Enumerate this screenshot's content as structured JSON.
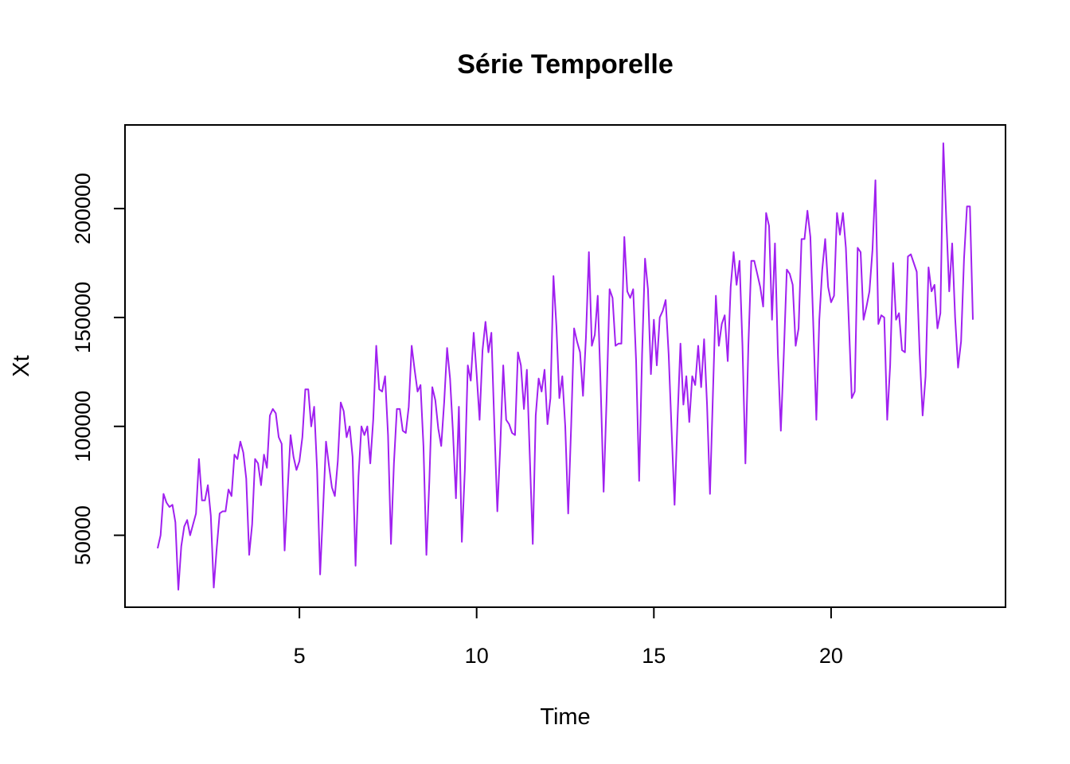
{
  "chart_data": {
    "type": "line",
    "title": "Série Temporelle",
    "xlabel": "Time",
    "ylabel": "Xt",
    "xlim": [
      1,
      24
    ],
    "ylim": [
      25000,
      230000
    ],
    "xticks": [
      5,
      10,
      15,
      20
    ],
    "yticks": [
      50000,
      100000,
      150000,
      200000
    ],
    "xtick_labels": [
      "5",
      "10",
      "15",
      "20"
    ],
    "ytick_labels": [
      "50000",
      "100000",
      "150000",
      "200000"
    ],
    "grid": false,
    "legend": false,
    "color": "#A020F0",
    "series": [
      {
        "values": [
          44000,
          50000,
          69000,
          65000,
          63000,
          64000,
          56000,
          25000,
          45000,
          54000,
          57000,
          50000,
          55000,
          60000,
          85000,
          66000,
          66000,
          73000,
          59000,
          26000,
          44000,
          60000,
          61000,
          61000,
          71000,
          68000,
          87000,
          85000,
          93000,
          88000,
          76000,
          41000,
          55000,
          85000,
          83000,
          73000,
          87000,
          81000,
          105000,
          108000,
          106000,
          95000,
          92000,
          43000,
          70000,
          96000,
          86000,
          80000,
          84000,
          95000,
          117000,
          117000,
          100000,
          109000,
          80000,
          32000,
          62000,
          93000,
          82000,
          72000,
          68000,
          84000,
          111000,
          107000,
          95000,
          100000,
          86000,
          36000,
          77000,
          100000,
          96000,
          100000,
          83000,
          103000,
          137000,
          117000,
          116000,
          123000,
          96000,
          46000,
          83000,
          108000,
          108000,
          98000,
          97000,
          109000,
          137000,
          126000,
          116000,
          119000,
          91000,
          41000,
          75000,
          118000,
          112000,
          99000,
          91000,
          111000,
          136000,
          122000,
          97000,
          67000,
          109000,
          47000,
          80000,
          128000,
          121000,
          143000,
          124000,
          103000,
          135000,
          148000,
          134000,
          143000,
          100000,
          61000,
          91000,
          128000,
          103000,
          101000,
          97000,
          96000,
          134000,
          128000,
          108000,
          126000,
          86000,
          46000,
          105000,
          122000,
          116000,
          126000,
          101000,
          113000,
          169000,
          146000,
          113000,
          123000,
          100000,
          60000,
          100000,
          145000,
          139000,
          134000,
          114000,
          141000,
          180000,
          137000,
          142000,
          160000,
          118000,
          70000,
          112000,
          163000,
          159000,
          137000,
          138000,
          138000,
          187000,
          162000,
          159000,
          163000,
          130000,
          75000,
          133000,
          177000,
          163000,
          124000,
          149000,
          128000,
          150000,
          153000,
          158000,
          133000,
          98000,
          64000,
          103000,
          138000,
          110000,
          123000,
          102000,
          123000,
          119000,
          137000,
          118000,
          140000,
          110000,
          69000,
          115000,
          160000,
          137000,
          147000,
          151000,
          130000,
          164000,
          180000,
          165000,
          176000,
          137000,
          83000,
          137000,
          176000,
          176000,
          170000,
          164000,
          155000,
          198000,
          192000,
          149000,
          184000,
          133000,
          98000,
          134000,
          172000,
          170000,
          165000,
          137000,
          145000,
          186000,
          186000,
          199000,
          187000,
          145000,
          103000,
          149000,
          172000,
          186000,
          164000,
          157000,
          160000,
          198000,
          188000,
          198000,
          182000,
          148000,
          113000,
          116000,
          182000,
          180000,
          149000,
          155000,
          162000,
          181000,
          213000,
          147000,
          151000,
          150000,
          103000,
          128000,
          175000,
          149000,
          152000,
          135000,
          134000,
          178000,
          179000,
          175000,
          171000,
          133000,
          105000,
          123000,
          173000,
          162000,
          165000,
          145000,
          152000,
          230000,
          195000,
          162000,
          184000,
          150000,
          127000,
          139000,
          177000,
          201000,
          201000,
          149000
        ]
      }
    ]
  }
}
